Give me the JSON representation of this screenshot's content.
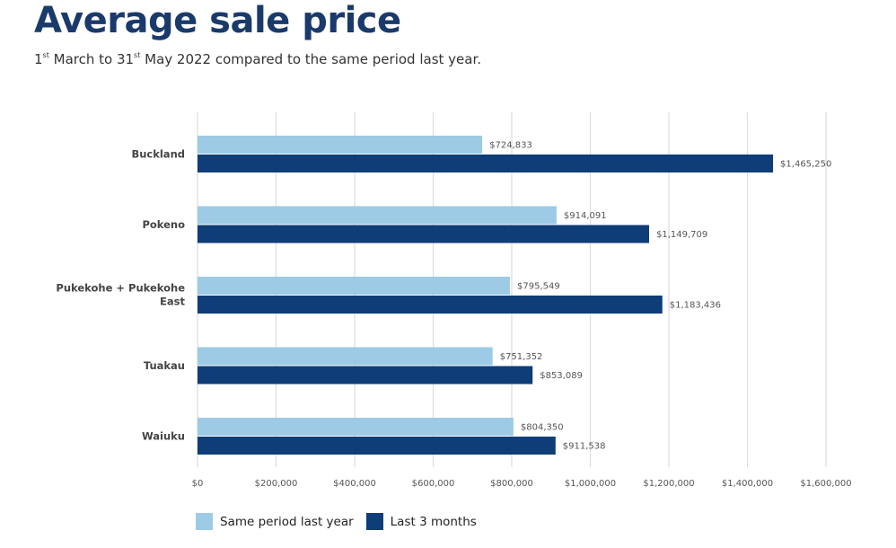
{
  "title": "Average sale price",
  "subtitle": {
    "part1": "1",
    "sup1": "st",
    "part2": " March to 31",
    "sup2": "st",
    "part3": " May 2022 compared to the same period last year."
  },
  "colors": {
    "last_year": "#9dcbe6",
    "last_3_months": "#0e3d78",
    "grid": "#dddddd",
    "title": "#1a3a6b"
  },
  "legend": [
    {
      "label": "Same period last year",
      "series": "last_year"
    },
    {
      "label": "Last 3 months",
      "series": "last_3_months"
    }
  ],
  "chart_data": {
    "type": "bar",
    "orientation": "horizontal",
    "title": "Average sale price",
    "subtitle": "1st March to 31st May 2022 compared to the same period last year.",
    "xlabel": "",
    "ylabel": "",
    "categories": [
      [
        "Buckland"
      ],
      [
        "Pokeno"
      ],
      [
        "Pukekohe + Pukekohe",
        "East"
      ],
      [
        "Tuakau"
      ],
      [
        "Waiuku"
      ]
    ],
    "series": [
      {
        "name": "Same period last year",
        "key": "last_year",
        "values": [
          724833,
          914091,
          795549,
          751352,
          804350
        ],
        "labels": [
          "$724,833",
          "$914,091",
          "$795,549",
          "$751,352",
          "$804,350"
        ]
      },
      {
        "name": "Last 3 months",
        "key": "last_3_months",
        "values": [
          1465250,
          1149709,
          1183436,
          853089,
          911538
        ],
        "labels": [
          "$1,465,250",
          "$1,149,709",
          "$1,183,436",
          "$853,089",
          "$911,538"
        ]
      }
    ],
    "xlim": [
      0,
      1600000
    ],
    "xticks": [
      0,
      200000,
      400000,
      600000,
      800000,
      1000000,
      1200000,
      1400000,
      1600000
    ],
    "xtick_labels": [
      "$0",
      "$200,000",
      "$400,000",
      "$600,000",
      "$800,000",
      "$1,000,000",
      "$1,200,000",
      "$1,400,000",
      "$1,600,000"
    ],
    "grid": true,
    "legend_position": "bottom-left"
  }
}
